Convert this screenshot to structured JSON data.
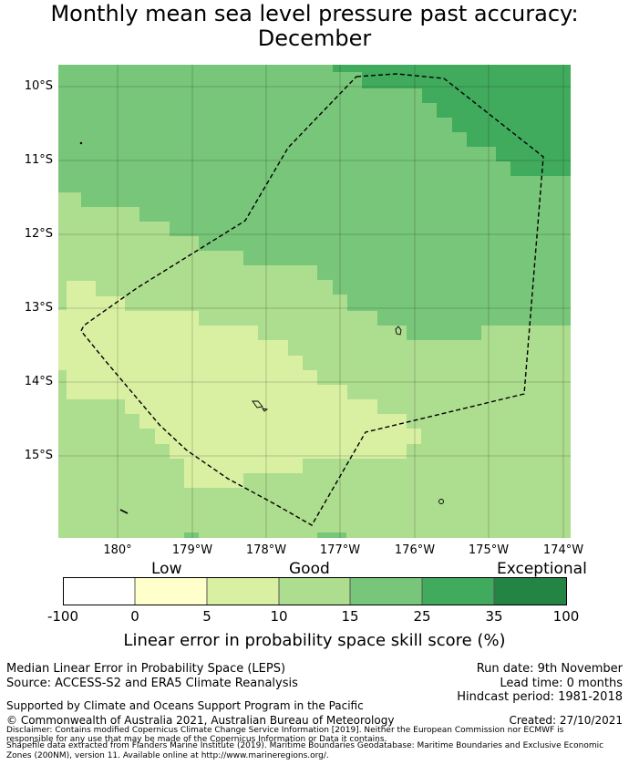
{
  "title": [
    "Monthly mean sea level pressure past accuracy:",
    "December"
  ],
  "map": {
    "lat_labels": [
      "10°S",
      "11°S",
      "12°S",
      "13°S",
      "14°S",
      "15°S"
    ],
    "lon_labels": [
      "180°",
      "179°W",
      "178°W",
      "177°W",
      "176°W",
      "175°W",
      "174°W"
    ],
    "extent": {
      "lon_min": -180.8,
      "lon_max": -173.9,
      "lat_min": -16.25,
      "lat_max": -9.7
    }
  },
  "colorbar": {
    "categories": [
      "Low",
      "Good",
      "Exceptional"
    ],
    "ticks": [
      "-100",
      "0",
      "5",
      "10",
      "15",
      "25",
      "35",
      "100"
    ],
    "colors": [
      "#ffffff",
      "#ffffcc",
      "#d9f0a3",
      "#addd8e",
      "#78c679",
      "#41ab5d",
      "#238443"
    ],
    "label": "Linear error in probability space skill score (%)"
  },
  "footer": {
    "left_line1": "Median Linear Error in Probability Space (LEPS)",
    "left_line2": "Source: ACCESS-S2 and ERA5 Climate Reanalysis",
    "run_date": "Run date: 9th November",
    "lead_time": "Lead time: 0 months",
    "hindcast": "Hindcast period: 1981-2018",
    "supported": "Supported by Climate and Oceans Support Program in the Pacific",
    "copyright": "© Commonwealth of Australia 2021, Australian Bureau of Meteorology",
    "created": "Created: 27/10/2021",
    "disclaimer1": "Disclaimer: Contains modified Copernicus Climate Change Service Information [2019]. Neither the European Commission nor ECMWF is",
    "disclaimer2": "responsible for any use that may be made of the Copernicus Information or Data it contains.",
    "disclaimer3": "Shapefile data extracted from Flanders Marine Institute (2019). Maritime Boundaries Geodatabase: Maritime Boundaries and Exclusive Economic",
    "disclaimer4": "Zones (200NM), version 11. Available online at http://www.marineregions.org/."
  }
}
